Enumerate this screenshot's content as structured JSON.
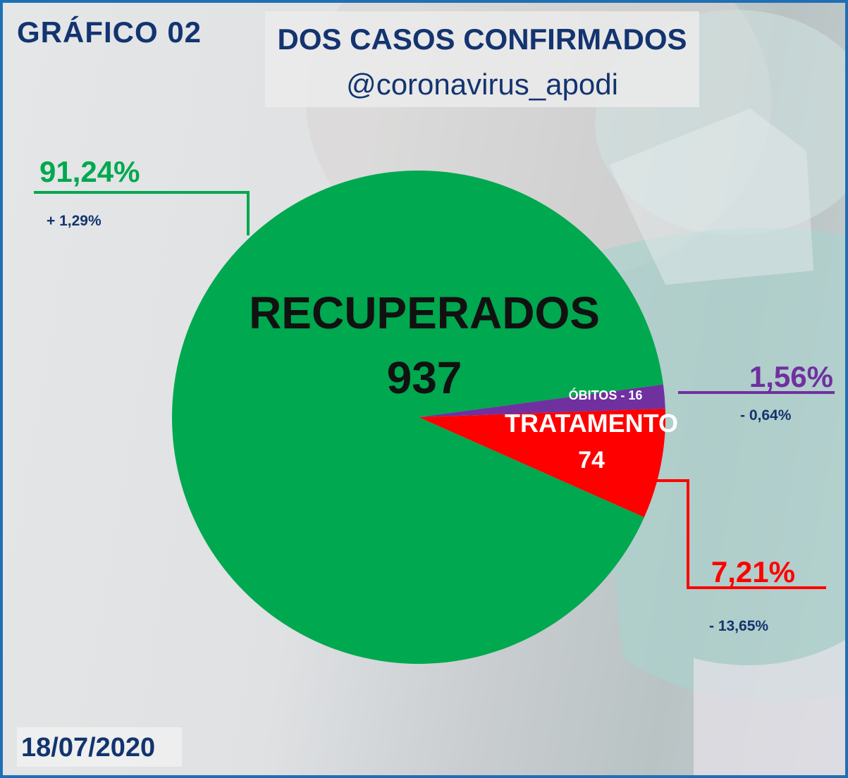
{
  "header": {
    "grafico_label": "GRÁFICO 02",
    "title": "DOS CASOS CONFIRMADOS",
    "handle": "@coronavirus_apodi"
  },
  "date": "18/07/2020",
  "colors": {
    "recuperados": "#00a84f",
    "obitos": "#7030a0",
    "tratamento": "#ff0000",
    "navy": "#13346f",
    "frame": "#1f6fb4"
  },
  "chart_data": {
    "type": "pie",
    "slices": [
      {
        "label": "RECUPERADOS",
        "value": 937,
        "percent_label": "91,24%",
        "change_label": "+ 1,29%",
        "color": "#00a84f"
      },
      {
        "label": "ÓBITOS - 16",
        "value": 16,
        "percent_label": "1,56%",
        "change_label": "- 0,64%",
        "color": "#7030a0"
      },
      {
        "label": "TRATAMENTO",
        "value": 74,
        "percent_label": "7,21%",
        "change_label": "- 13,65%",
        "color": "#ff0000"
      }
    ],
    "center_labels": {
      "recuperados_title": "RECUPERADOS",
      "recuperados_value": "937",
      "obitos_inline": "ÓBITOS - 16",
      "tratamento_title": "TRATAMENTO",
      "tratamento_value": "74"
    }
  }
}
